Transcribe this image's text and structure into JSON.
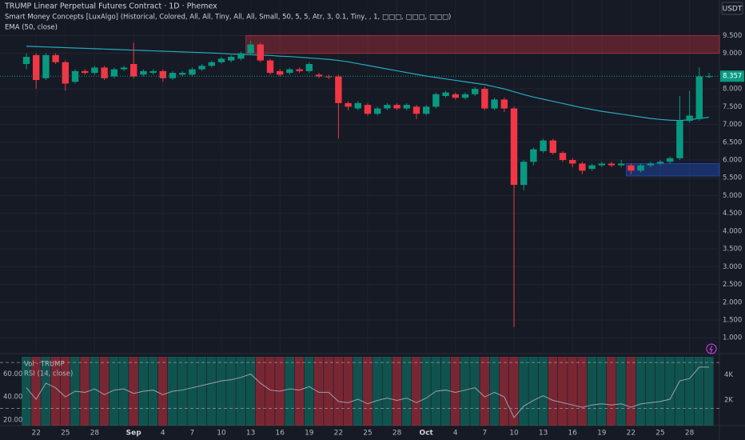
{
  "chart_data": {
    "type": "candlestick",
    "title": "TRUMP Linear Perpetual Futures Contract · 1D · Phemex",
    "indicator_labels": [
      "Smart Money Concepts [LuxAlgo] (Historical, Colored, All, All, Tiny, All, All, Small, 50, 5, 5, Atr, 3, 0.1, Tiny, , 1, □□□, □□□, □□□)",
      "EMA (50, close)"
    ],
    "currency": "USDT",
    "categories": [
      null,
      "22",
      null,
      null,
      "25",
      null,
      null,
      "28",
      null,
      null,
      null,
      "Sep",
      null,
      null,
      "4",
      null,
      null,
      "7",
      null,
      null,
      "10",
      null,
      null,
      "13",
      null,
      null,
      "16",
      null,
      null,
      "19",
      null,
      null,
      "22",
      null,
      null,
      "25",
      null,
      null,
      "28",
      null,
      null,
      "Oct",
      null,
      null,
      "4",
      null,
      null,
      "7",
      null,
      null,
      "10",
      null,
      null,
      "13",
      null,
      null,
      "16",
      null,
      null,
      "19",
      null,
      null,
      "22",
      null,
      null,
      "25",
      null,
      null,
      "28",
      null,
      null
    ],
    "candles": {
      "open": [
        8.7,
        8.95,
        8.3,
        8.95,
        8.75,
        8.2,
        8.5,
        8.45,
        8.6,
        8.35,
        8.55,
        8.7,
        8.4,
        8.45,
        8.5,
        8.3,
        8.4,
        8.4,
        8.55,
        8.65,
        8.75,
        8.8,
        8.85,
        9.0,
        9.25,
        8.8,
        8.5,
        8.45,
        8.55,
        8.5,
        8.4,
        8.35,
        8.35,
        7.6,
        7.45,
        7.55,
        7.3,
        7.45,
        7.55,
        7.45,
        7.5,
        7.3,
        7.5,
        7.8,
        7.85,
        7.75,
        7.85,
        8.0,
        7.45,
        7.7,
        7.45,
        5.3,
        5.95,
        6.25,
        6.55,
        6.2,
        6.0,
        5.9,
        5.75,
        5.85,
        5.9,
        5.85,
        5.85,
        5.7,
        5.85,
        5.9,
        5.95,
        6.05,
        7.1,
        7.15,
        8.35
      ],
      "high": [
        9.0,
        9.0,
        9.0,
        9.0,
        8.8,
        8.55,
        8.55,
        8.65,
        8.65,
        8.6,
        8.65,
        9.3,
        8.55,
        8.55,
        8.55,
        8.5,
        8.5,
        8.6,
        8.7,
        8.8,
        8.9,
        8.95,
        9.05,
        9.35,
        9.3,
        8.85,
        8.55,
        8.6,
        8.6,
        8.75,
        8.45,
        8.4,
        8.4,
        7.65,
        7.65,
        7.6,
        7.5,
        7.6,
        7.6,
        7.6,
        7.55,
        7.55,
        7.9,
        7.95,
        7.9,
        7.9,
        8.05,
        8.05,
        7.75,
        7.75,
        7.5,
        6.0,
        6.35,
        6.6,
        6.6,
        6.25,
        6.05,
        5.95,
        5.9,
        5.95,
        5.95,
        6.0,
        5.9,
        5.9,
        5.95,
        6.0,
        6.1,
        7.8,
        7.95,
        8.6,
        8.45
      ],
      "low": [
        8.55,
        8.0,
        8.25,
        8.7,
        7.95,
        8.15,
        8.4,
        8.4,
        8.25,
        8.3,
        8.5,
        8.3,
        8.35,
        8.4,
        8.2,
        8.25,
        8.35,
        8.35,
        8.5,
        8.6,
        8.7,
        8.75,
        8.8,
        8.95,
        8.75,
        8.4,
        8.35,
        8.4,
        8.45,
        8.45,
        8.3,
        8.28,
        6.6,
        7.4,
        7.4,
        7.25,
        7.25,
        7.4,
        7.4,
        7.4,
        7.15,
        7.25,
        7.45,
        7.75,
        7.7,
        7.7,
        7.8,
        7.4,
        7.4,
        7.35,
        1.3,
        5.15,
        5.85,
        6.2,
        6.15,
        5.95,
        5.8,
        5.6,
        5.7,
        5.8,
        5.8,
        5.8,
        5.6,
        5.65,
        5.8,
        5.85,
        5.9,
        6.0,
        7.05,
        7.1,
        8.3
      ],
      "close": [
        8.9,
        8.25,
        8.95,
        8.75,
        8.15,
        8.5,
        8.45,
        8.6,
        8.3,
        8.55,
        8.6,
        8.35,
        8.5,
        8.5,
        8.3,
        8.45,
        8.45,
        8.55,
        8.65,
        8.75,
        8.85,
        8.9,
        9.0,
        9.25,
        8.8,
        8.45,
        8.4,
        8.55,
        8.5,
        8.7,
        8.35,
        8.33,
        7.6,
        7.5,
        7.6,
        7.3,
        7.45,
        7.55,
        7.45,
        7.55,
        7.3,
        7.5,
        7.85,
        7.9,
        7.75,
        7.85,
        8.0,
        7.45,
        7.7,
        7.45,
        5.3,
        5.95,
        6.3,
        6.55,
        6.2,
        6.0,
        5.9,
        5.7,
        5.85,
        5.9,
        5.85,
        5.9,
        5.7,
        5.85,
        5.9,
        5.95,
        6.05,
        7.1,
        7.25,
        8.35,
        8.357
      ]
    },
    "up_color": "#089981",
    "down_color": "#f23645",
    "ema": {
      "color": "#26a9bd",
      "values": [
        9.2,
        9.19,
        9.18,
        9.17,
        9.16,
        9.15,
        9.14,
        9.13,
        9.12,
        9.11,
        9.1,
        9.09,
        9.08,
        9.07,
        9.06,
        9.05,
        9.04,
        9.03,
        9.02,
        9.01,
        9.0,
        8.98,
        8.97,
        8.96,
        8.95,
        8.94,
        8.92,
        8.91,
        8.89,
        8.87,
        8.85,
        8.83,
        8.8,
        8.76,
        8.71,
        8.66,
        8.61,
        8.56,
        8.51,
        8.46,
        8.41,
        8.36,
        8.32,
        8.28,
        8.24,
        8.2,
        8.16,
        8.12,
        8.06,
        8.0,
        7.92,
        7.84,
        7.77,
        7.71,
        7.65,
        7.59,
        7.53,
        7.47,
        7.42,
        7.37,
        7.33,
        7.29,
        7.25,
        7.21,
        7.17,
        7.14,
        7.12,
        7.11,
        7.13,
        7.17,
        7.2
      ]
    },
    "zones": [
      {
        "from": 23,
        "bottom": 9.0,
        "top": 9.5,
        "color": "#f23645"
      },
      {
        "from": 62,
        "bottom": 5.55,
        "top": 5.9,
        "color": "#2962ff"
      }
    ],
    "last_price": 8.357,
    "ylim": [
      0.6,
      10.5
    ],
    "yticks": [
      {
        "value": 1.0,
        "label": "1.000"
      },
      {
        "value": 1.5,
        "label": "1.500"
      },
      {
        "value": 2.0,
        "label": "2.000"
      },
      {
        "value": 2.5,
        "label": "2.500"
      },
      {
        "value": 3.0,
        "label": "3.000"
      },
      {
        "value": 3.5,
        "label": "3.500"
      },
      {
        "value": 4.0,
        "label": "4.000"
      },
      {
        "value": 4.5,
        "label": "4.500"
      },
      {
        "value": 5.0,
        "label": "5.000"
      },
      {
        "value": 5.5,
        "label": "5.500"
      },
      {
        "value": 6.0,
        "label": "6.000"
      },
      {
        "value": 6.5,
        "label": "6.500"
      },
      {
        "value": 7.0,
        "label": "7.000"
      },
      {
        "value": 7.5,
        "label": "7.500"
      },
      {
        "value": 8.0,
        "label": "8.000"
      },
      {
        "value": 9.0,
        "label": "9.000"
      },
      {
        "value": 9.5,
        "label": "9.500"
      }
    ],
    "grid": true,
    "lower_pane": {
      "labels": [
        "Vol · TRUMP",
        "RSI (14, close)"
      ],
      "rsi_color": "#9aa0ab",
      "rsi": [
        48,
        38,
        52,
        48,
        40,
        45,
        44,
        47,
        42,
        46,
        47,
        43,
        45,
        46,
        42,
        45,
        46,
        48,
        50,
        52,
        54,
        55,
        57,
        60,
        52,
        46,
        45,
        47,
        46,
        49,
        44,
        44,
        36,
        35,
        38,
        34,
        37,
        39,
        37,
        39,
        35,
        39,
        45,
        46,
        44,
        46,
        48,
        40,
        44,
        40,
        22,
        32,
        37,
        41,
        37,
        35,
        33,
        31,
        33,
        34,
        33,
        34,
        31,
        34,
        35,
        36,
        38,
        54,
        56,
        66,
        66
      ],
      "rsi_lim": [
        15,
        75
      ],
      "rsi_ticks": [
        {
          "value": 20,
          "label": "20.00"
        },
        {
          "value": 40,
          "label": "40.00"
        },
        {
          "value": 60,
          "label": "60.00"
        }
      ],
      "rsi_bands": [
        30,
        70
      ],
      "vol_lim": [
        0,
        5400
      ],
      "vol_ticks": [
        {
          "value": 2000,
          "label": "2K"
        },
        {
          "value": 4000,
          "label": "4K"
        }
      ]
    }
  }
}
